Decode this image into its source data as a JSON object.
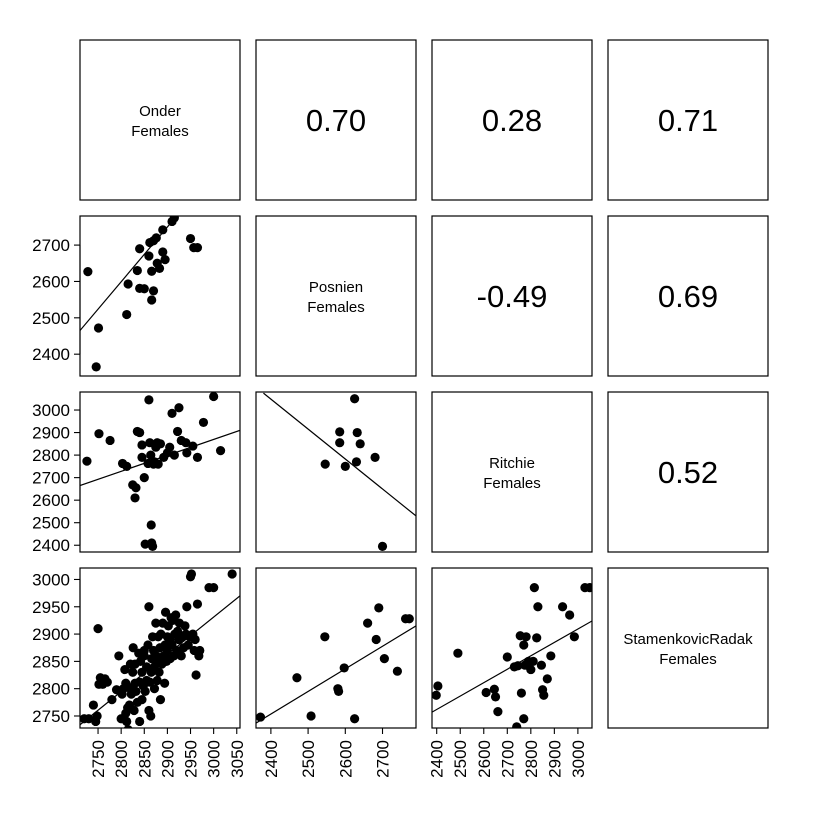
{
  "chart_data": {
    "type": "scatter",
    "layout": "pairs",
    "variables": [
      {
        "line1": "Onder",
        "line2": "Females"
      },
      {
        "line1": "Posnien",
        "line2": "Females"
      },
      {
        "line1": "Ritchie",
        "line2": "Females"
      },
      {
        "line1": "StamenkovicRadak",
        "line2": "Females"
      }
    ],
    "upper_correlations": [
      {
        "row": 0,
        "col": 1,
        "value": "0.70"
      },
      {
        "row": 0,
        "col": 2,
        "value": "0.28"
      },
      {
        "row": 0,
        "col": 3,
        "value": "0.71"
      },
      {
        "row": 1,
        "col": 2,
        "value": "-0.49"
      },
      {
        "row": 1,
        "col": 3,
        "value": "0.69"
      },
      {
        "row": 2,
        "col": 3,
        "value": "0.52"
      }
    ],
    "y_axes": [
      {
        "row": 1,
        "range": [
          2340,
          2780
        ],
        "ticks": [
          2400,
          2500,
          2600,
          2700
        ]
      },
      {
        "row": 2,
        "range": [
          2370,
          3080
        ],
        "ticks": [
          2400,
          2500,
          2600,
          2700,
          2800,
          2900,
          3000
        ]
      },
      {
        "row": 3,
        "range": [
          2728,
          3021
        ],
        "ticks": [
          2750,
          2800,
          2850,
          2900,
          2950,
          3000
        ]
      }
    ],
    "x_axes": [
      {
        "col": 0,
        "range": [
          2711,
          3057
        ],
        "ticks": [
          2750,
          2800,
          2850,
          2900,
          2950,
          3000,
          3050
        ]
      },
      {
        "col": 1,
        "range": [
          2360,
          2790
        ],
        "ticks": [
          2400,
          2500,
          2600,
          2700
        ]
      },
      {
        "col": 2,
        "range": [
          2380,
          3060
        ],
        "ticks": [
          2400,
          2500,
          2600,
          2700,
          2800,
          2900,
          3000
        ]
      }
    ],
    "panels": [
      {
        "row": 1,
        "col": 0,
        "fit": {
          "x": [
            2711,
            2920
          ],
          "y": [
            2465,
            2780
          ]
        },
        "points": [
          [
            2728,
            2627
          ],
          [
            2751,
            2472
          ],
          [
            2746,
            2365
          ],
          [
            2812,
            2509
          ],
          [
            2815,
            2593
          ],
          [
            2835,
            2630
          ],
          [
            2840,
            2581
          ],
          [
            2840,
            2690
          ],
          [
            2850,
            2580
          ],
          [
            2860,
            2670
          ],
          [
            2862,
            2707
          ],
          [
            2866,
            2628
          ],
          [
            2866,
            2549
          ],
          [
            2870,
            2574
          ],
          [
            2870,
            2712
          ],
          [
            2876,
            2720
          ],
          [
            2878,
            2650
          ],
          [
            2883,
            2636
          ],
          [
            2890,
            2681
          ],
          [
            2890,
            2742
          ],
          [
            2895,
            2660
          ],
          [
            2910,
            2765
          ],
          [
            2915,
            2775
          ],
          [
            2950,
            2718
          ],
          [
            2957,
            2693
          ],
          [
            2965,
            2693
          ]
        ]
      },
      {
        "row": 2,
        "col": 0,
        "fit": {
          "x": [
            2711,
            3057
          ],
          "y": [
            2665,
            2910
          ]
        },
        "points": [
          [
            2726,
            2773
          ],
          [
            2752,
            2895
          ],
          [
            2776,
            2865
          ],
          [
            2803,
            2763
          ],
          [
            2812,
            2750
          ],
          [
            2825,
            2668
          ],
          [
            2830,
            2610
          ],
          [
            2832,
            2655
          ],
          [
            2835,
            2905
          ],
          [
            2840,
            2900
          ],
          [
            2845,
            2790
          ],
          [
            2845,
            2845
          ],
          [
            2850,
            2700
          ],
          [
            2852,
            2405
          ],
          [
            2858,
            2763
          ],
          [
            2860,
            3045
          ],
          [
            2862,
            2855
          ],
          [
            2864,
            2800
          ],
          [
            2865,
            2490
          ],
          [
            2866,
            2410
          ],
          [
            2868,
            2395
          ],
          [
            2870,
            2760
          ],
          [
            2872,
            2770
          ],
          [
            2875,
            2835
          ],
          [
            2878,
            2855
          ],
          [
            2880,
            2760
          ],
          [
            2882,
            2850
          ],
          [
            2885,
            2850
          ],
          [
            2892,
            2790
          ],
          [
            2900,
            2810
          ],
          [
            2905,
            2835
          ],
          [
            2910,
            2985
          ],
          [
            2915,
            2800
          ],
          [
            2922,
            2905
          ],
          [
            2925,
            3010
          ],
          [
            2930,
            2865
          ],
          [
            2940,
            2855
          ],
          [
            2942,
            2810
          ],
          [
            2955,
            2840
          ],
          [
            2965,
            2790
          ],
          [
            2978,
            2945
          ],
          [
            3000,
            3060
          ],
          [
            3015,
            2820
          ]
        ]
      },
      {
        "row": 3,
        "col": 0,
        "fit": {
          "x": [
            2711,
            3057
          ],
          "y": [
            2734,
            2970
          ]
        },
        "points": [
          [
            2720,
            2745
          ],
          [
            2730,
            2745
          ],
          [
            2740,
            2770
          ],
          [
            2745,
            2740
          ],
          [
            2748,
            2750
          ],
          [
            2750,
            2910
          ],
          [
            2752,
            2808
          ],
          [
            2755,
            2820
          ],
          [
            2758,
            2815
          ],
          [
            2760,
            2808
          ],
          [
            2765,
            2818
          ],
          [
            2770,
            2812
          ],
          [
            2780,
            2780
          ],
          [
            2790,
            2798
          ],
          [
            2795,
            2860
          ],
          [
            2800,
            2745
          ],
          [
            2802,
            2790
          ],
          [
            2805,
            2800
          ],
          [
            2808,
            2835
          ],
          [
            2810,
            2810
          ],
          [
            2810,
            2755
          ],
          [
            2812,
            2740
          ],
          [
            2814,
            2765
          ],
          [
            2815,
            2725
          ],
          [
            2818,
            2770
          ],
          [
            2820,
            2845
          ],
          [
            2820,
            2800
          ],
          [
            2822,
            2790
          ],
          [
            2825,
            2830
          ],
          [
            2826,
            2875
          ],
          [
            2828,
            2760
          ],
          [
            2830,
            2810
          ],
          [
            2830,
            2845
          ],
          [
            2832,
            2795
          ],
          [
            2835,
            2775
          ],
          [
            2838,
            2865
          ],
          [
            2840,
            2740
          ],
          [
            2840,
            2812
          ],
          [
            2842,
            2850
          ],
          [
            2845,
            2830
          ],
          [
            2845,
            2780
          ],
          [
            2848,
            2805
          ],
          [
            2850,
            2860
          ],
          [
            2850,
            2870
          ],
          [
            2852,
            2795
          ],
          [
            2855,
            2815
          ],
          [
            2855,
            2840
          ],
          [
            2858,
            2880
          ],
          [
            2860,
            2950
          ],
          [
            2860,
            2760
          ],
          [
            2862,
            2812
          ],
          [
            2864,
            2750
          ],
          [
            2865,
            2830
          ],
          [
            2866,
            2855
          ],
          [
            2868,
            2895
          ],
          [
            2870,
            2870
          ],
          [
            2872,
            2840
          ],
          [
            2872,
            2800
          ],
          [
            2875,
            2920
          ],
          [
            2876,
            2860
          ],
          [
            2878,
            2815
          ],
          [
            2880,
            2850
          ],
          [
            2880,
            2895
          ],
          [
            2882,
            2830
          ],
          [
            2884,
            2875
          ],
          [
            2885,
            2780
          ],
          [
            2886,
            2900
          ],
          [
            2888,
            2845
          ],
          [
            2890,
            2920
          ],
          [
            2892,
            2860
          ],
          [
            2894,
            2810
          ],
          [
            2895,
            2880
          ],
          [
            2896,
            2940
          ],
          [
            2898,
            2850
          ],
          [
            2900,
            2870
          ],
          [
            2900,
            2895
          ],
          [
            2902,
            2915
          ],
          [
            2905,
            2890
          ],
          [
            2906,
            2855
          ],
          [
            2908,
            2930
          ],
          [
            2910,
            2880
          ],
          [
            2912,
            2925
          ],
          [
            2914,
            2860
          ],
          [
            2916,
            2900
          ],
          [
            2918,
            2935
          ],
          [
            2920,
            2870
          ],
          [
            2922,
            2905
          ],
          [
            2924,
            2890
          ],
          [
            2926,
            2920
          ],
          [
            2930,
            2860
          ],
          [
            2932,
            2895
          ],
          [
            2935,
            2875
          ],
          [
            2938,
            2915
          ],
          [
            2940,
            2900
          ],
          [
            2942,
            2950
          ],
          [
            2945,
            2880
          ],
          [
            2948,
            2895
          ],
          [
            2950,
            3005
          ],
          [
            2952,
            3010
          ],
          [
            2955,
            2900
          ],
          [
            2958,
            2870
          ],
          [
            2960,
            2890
          ],
          [
            2962,
            2825
          ],
          [
            2965,
            2955
          ],
          [
            2968,
            2860
          ],
          [
            2970,
            2870
          ],
          [
            2990,
            2985
          ],
          [
            3000,
            2985
          ],
          [
            3040,
            3010
          ]
        ]
      },
      {
        "row": 2,
        "col": 1,
        "fit": {
          "x": [
            2380,
            2790
          ],
          "y": [
            3075,
            2530
          ]
        },
        "points": [
          [
            2546,
            2760
          ],
          [
            2585,
            2855
          ],
          [
            2585,
            2903
          ],
          [
            2600,
            2750
          ],
          [
            2625,
            3050
          ],
          [
            2630,
            2770
          ],
          [
            2632,
            2900
          ],
          [
            2640,
            2850
          ],
          [
            2680,
            2790
          ],
          [
            2700,
            2395
          ]
        ]
      },
      {
        "row": 3,
        "col": 1,
        "fit": {
          "x": [
            2360,
            2790
          ],
          "y": [
            2737,
            2915
          ]
        },
        "points": [
          [
            2372,
            2748
          ],
          [
            2470,
            2820
          ],
          [
            2508,
            2750
          ],
          [
            2545,
            2895
          ],
          [
            2580,
            2800
          ],
          [
            2582,
            2795
          ],
          [
            2597,
            2838
          ],
          [
            2625,
            2745
          ],
          [
            2660,
            2920
          ],
          [
            2683,
            2890
          ],
          [
            2690,
            2948
          ],
          [
            2705,
            2855
          ],
          [
            2740,
            2832
          ],
          [
            2762,
            2928
          ],
          [
            2772,
            2928
          ]
        ]
      },
      {
        "row": 3,
        "col": 2,
        "fit": {
          "x": [
            2380,
            3060
          ],
          "y": [
            2757,
            2924
          ]
        },
        "points": [
          [
            2398,
            2788
          ],
          [
            2405,
            2805
          ],
          [
            2490,
            2865
          ],
          [
            2610,
            2793
          ],
          [
            2645,
            2799
          ],
          [
            2650,
            2785
          ],
          [
            2660,
            2758
          ],
          [
            2700,
            2858
          ],
          [
            2730,
            2840
          ],
          [
            2740,
            2730
          ],
          [
            2745,
            2842
          ],
          [
            2755,
            2897
          ],
          [
            2760,
            2792
          ],
          [
            2770,
            2880
          ],
          [
            2770,
            2745
          ],
          [
            2775,
            2843
          ],
          [
            2780,
            2895
          ],
          [
            2790,
            2850
          ],
          [
            2800,
            2835
          ],
          [
            2810,
            2850
          ],
          [
            2815,
            2985
          ],
          [
            2825,
            2893
          ],
          [
            2830,
            2950
          ],
          [
            2845,
            2843
          ],
          [
            2850,
            2798
          ],
          [
            2855,
            2788
          ],
          [
            2870,
            2818
          ],
          [
            2885,
            2860
          ],
          [
            2935,
            2950
          ],
          [
            2965,
            2935
          ],
          [
            2985,
            2895
          ],
          [
            3030,
            2985
          ],
          [
            3050,
            2985
          ]
        ]
      }
    ]
  }
}
